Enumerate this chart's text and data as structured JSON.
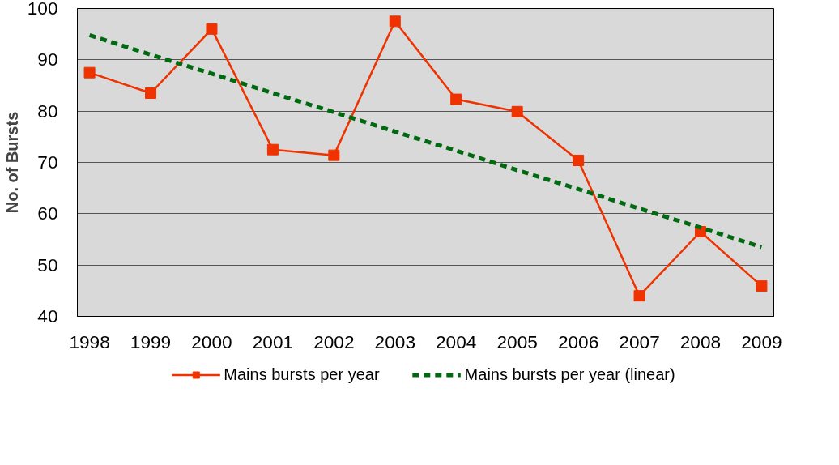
{
  "chart_data": {
    "type": "line",
    "ylabel": "No. of Bursts",
    "categories": [
      "1998",
      "1999",
      "2000",
      "2001",
      "2002",
      "2003",
      "2004",
      "2005",
      "2006",
      "2007",
      "2008",
      "2009"
    ],
    "series": [
      {
        "name": "Mains bursts per year",
        "color": "#ee3300",
        "marker": "square",
        "line_style": "solid",
        "values": [
          87.5,
          83.5,
          96,
          72.5,
          71.4,
          97.5,
          82.3,
          79.9,
          70.4,
          44,
          56.5,
          45.9
        ]
      },
      {
        "name": "Mains bursts per year (linear)",
        "color": "#006a10",
        "marker": "none",
        "line_style": "dashed",
        "values": [
          94.8,
          91.0,
          87.3,
          83.5,
          79.8,
          76.0,
          72.3,
          68.5,
          64.8,
          61.0,
          57.3,
          53.5
        ]
      }
    ],
    "ylim": [
      40,
      100
    ],
    "yticks": [
      40,
      50,
      60,
      70,
      80,
      90,
      100
    ],
    "grid": "y",
    "legend": "bottom"
  }
}
